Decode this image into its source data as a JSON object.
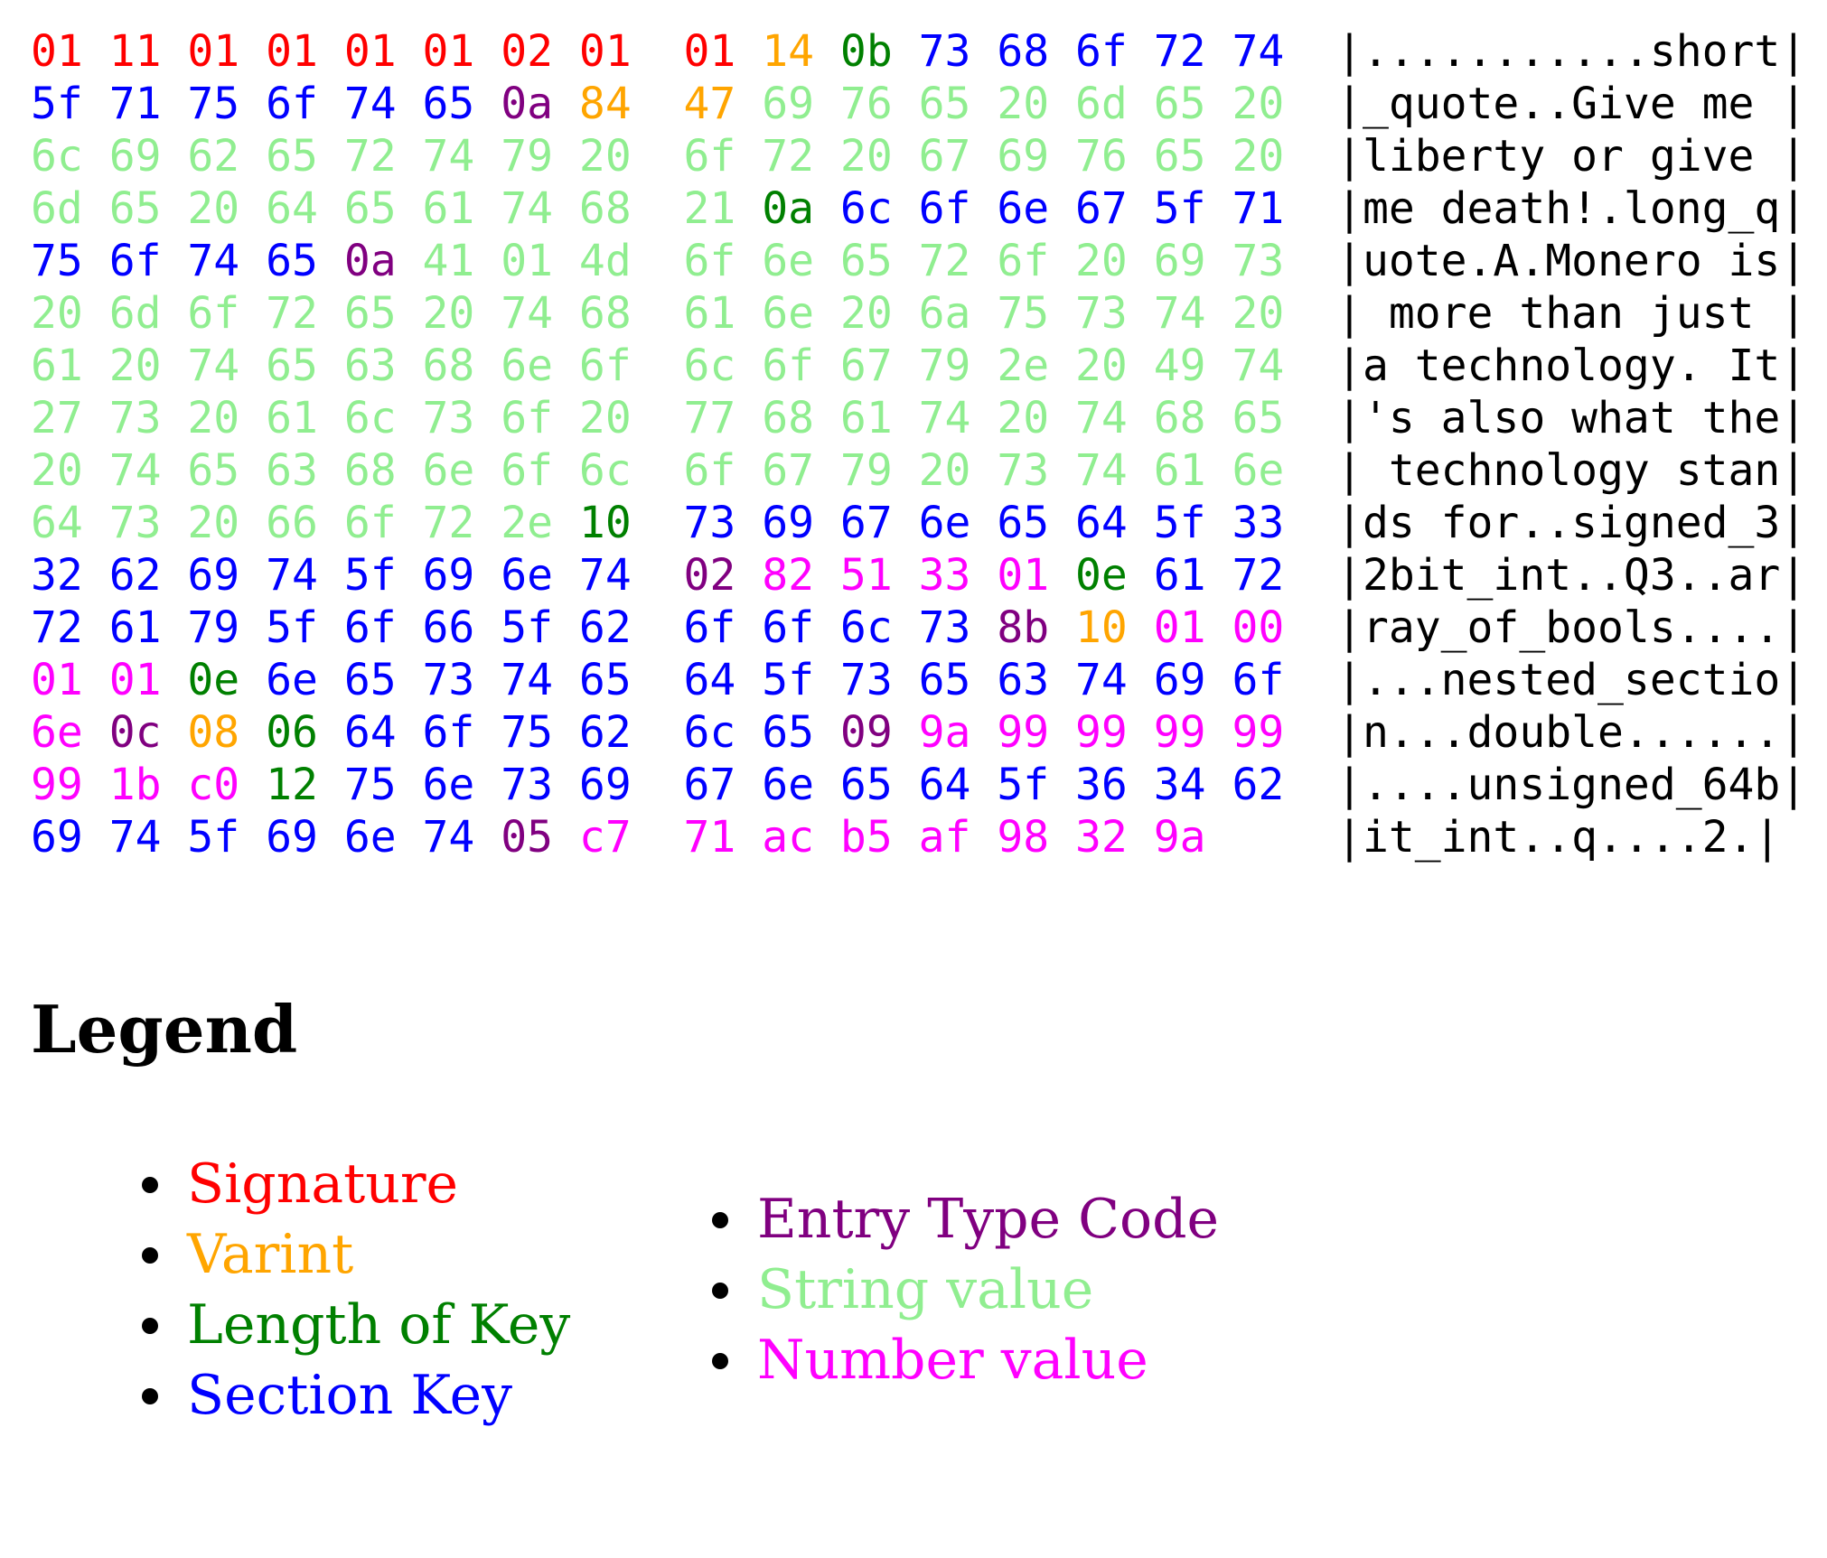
{
  "colors": {
    "S": "#ff0000",
    "V": "#ffa500",
    "L": "#008000",
    "K": "#0000ff",
    "E": "#800080",
    "s": "#90ee90",
    "n": "#ff00ff"
  },
  "hexdump": [
    {
      "hex": [
        "01",
        "11",
        "01",
        "01",
        "01",
        "01",
        "02",
        "01",
        "01",
        "14",
        "0b",
        "73",
        "68",
        "6f",
        "72",
        "74"
      ],
      "cat": "SSSSSSSSSVLKKKKK",
      "ascii": "...........short"
    },
    {
      "hex": [
        "5f",
        "71",
        "75",
        "6f",
        "74",
        "65",
        "0a",
        "84",
        "47",
        "69",
        "76",
        "65",
        "20",
        "6d",
        "65",
        "20"
      ],
      "cat": "KKKKKKEVVsssssss",
      "ascii": "_quote..Give me "
    },
    {
      "hex": [
        "6c",
        "69",
        "62",
        "65",
        "72",
        "74",
        "79",
        "20",
        "6f",
        "72",
        "20",
        "67",
        "69",
        "76",
        "65",
        "20"
      ],
      "cat": "ssssssssssssssss",
      "ascii": "liberty or give "
    },
    {
      "hex": [
        "6d",
        "65",
        "20",
        "64",
        "65",
        "61",
        "74",
        "68",
        "21",
        "0a",
        "6c",
        "6f",
        "6e",
        "67",
        "5f",
        "71"
      ],
      "cat": "sssssssssLKKKKKK",
      "ascii": "me death!.long_q"
    },
    {
      "hex": [
        "75",
        "6f",
        "74",
        "65",
        "0a",
        "41",
        "01",
        "4d",
        "6f",
        "6e",
        "65",
        "72",
        "6f",
        "20",
        "69",
        "73"
      ],
      "cat": "KKKKEsssssssssss",
      "ascii": "uote.A.Monero is"
    },
    {
      "hex": [
        "20",
        "6d",
        "6f",
        "72",
        "65",
        "20",
        "74",
        "68",
        "61",
        "6e",
        "20",
        "6a",
        "75",
        "73",
        "74",
        "20"
      ],
      "cat": "ssssssssssssssss",
      "ascii": " more than just "
    },
    {
      "hex": [
        "61",
        "20",
        "74",
        "65",
        "63",
        "68",
        "6e",
        "6f",
        "6c",
        "6f",
        "67",
        "79",
        "2e",
        "20",
        "49",
        "74"
      ],
      "cat": "ssssssssssssssss",
      "ascii": "a technology. It"
    },
    {
      "hex": [
        "27",
        "73",
        "20",
        "61",
        "6c",
        "73",
        "6f",
        "20",
        "77",
        "68",
        "61",
        "74",
        "20",
        "74",
        "68",
        "65"
      ],
      "cat": "ssssssssssssssss",
      "ascii": "'s also what the"
    },
    {
      "hex": [
        "20",
        "74",
        "65",
        "63",
        "68",
        "6e",
        "6f",
        "6c",
        "6f",
        "67",
        "79",
        "20",
        "73",
        "74",
        "61",
        "6e"
      ],
      "cat": "ssssssssssssssss",
      "ascii": " technology stan"
    },
    {
      "hex": [
        "64",
        "73",
        "20",
        "66",
        "6f",
        "72",
        "2e",
        "10",
        "73",
        "69",
        "67",
        "6e",
        "65",
        "64",
        "5f",
        "33"
      ],
      "cat": "sssssssLKKKKKKKK",
      "ascii": "ds for..signed_3"
    },
    {
      "hex": [
        "32",
        "62",
        "69",
        "74",
        "5f",
        "69",
        "6e",
        "74",
        "02",
        "82",
        "51",
        "33",
        "01",
        "0e",
        "61",
        "72"
      ],
      "cat": "KKKKKKKKEnnnnLKK",
      "ascii": "2bit_int..Q3..ar"
    },
    {
      "hex": [
        "72",
        "61",
        "79",
        "5f",
        "6f",
        "66",
        "5f",
        "62",
        "6f",
        "6f",
        "6c",
        "73",
        "8b",
        "10",
        "01",
        "00"
      ],
      "cat": "KKKKKKKKKKKKEVnn",
      "ascii": "ray_of_bools...."
    },
    {
      "hex": [
        "01",
        "01",
        "0e",
        "6e",
        "65",
        "73",
        "74",
        "65",
        "64",
        "5f",
        "73",
        "65",
        "63",
        "74",
        "69",
        "6f"
      ],
      "cat": "nnLKKKKKKKKKKKKK",
      "ascii": "...nested_sectio"
    },
    {
      "hex": [
        "6e",
        "0c",
        "08",
        "06",
        "64",
        "6f",
        "75",
        "62",
        "6c",
        "65",
        "09",
        "9a",
        "99",
        "99",
        "99",
        "99"
      ],
      "cat": "nEVLKKKKKKEnnnnn",
      "ascii": "n...double......"
    },
    {
      "hex": [
        "99",
        "1b",
        "c0",
        "12",
        "75",
        "6e",
        "73",
        "69",
        "67",
        "6e",
        "65",
        "64",
        "5f",
        "36",
        "34",
        "62"
      ],
      "cat": "nnnLKKKKKKKKKKKK",
      "ascii": "....unsigned_64b"
    },
    {
      "hex": [
        "69",
        "74",
        "5f",
        "69",
        "6e",
        "74",
        "05",
        "c7",
        "71",
        "ac",
        "b5",
        "af",
        "98",
        "32",
        "9a"
      ],
      "cat": "KKKKKKEnnnnnnnn",
      "ascii": "it_int..q....2."
    }
  ],
  "legend": {
    "title": "Legend",
    "left": [
      {
        "label": "Signature",
        "cat": "S"
      },
      {
        "label": "Varint",
        "cat": "V"
      },
      {
        "label": "Length of Key",
        "cat": "L"
      },
      {
        "label": "Section Key",
        "cat": "K"
      }
    ],
    "right": [
      {
        "label": "Entry Type Code",
        "cat": "E"
      },
      {
        "label": "String value",
        "cat": "s"
      },
      {
        "label": "Number value",
        "cat": "n"
      }
    ]
  }
}
